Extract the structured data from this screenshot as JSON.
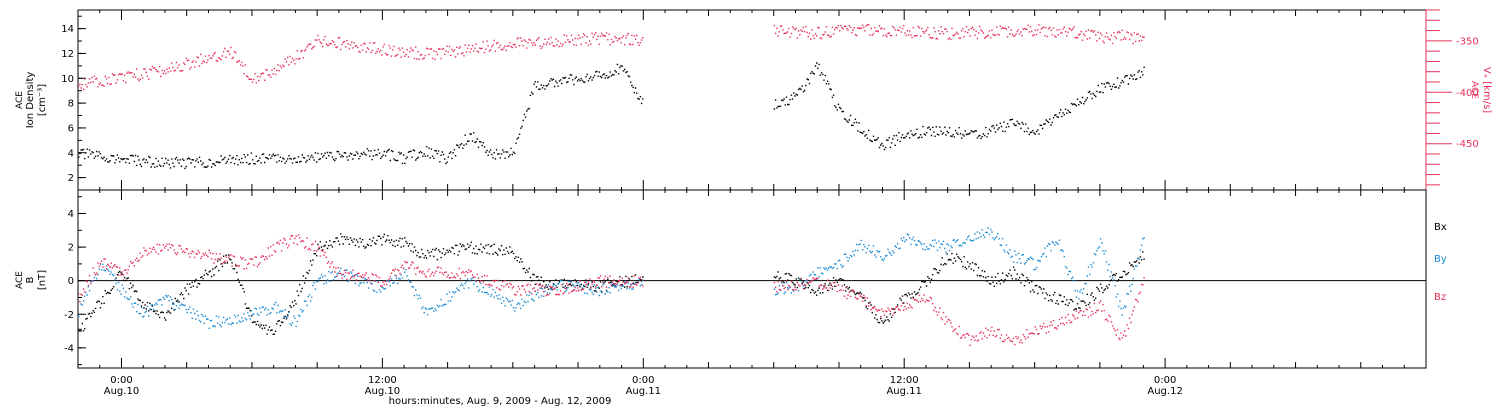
{
  "xaxis": {
    "title": "hours:minutes, Aug.  9, 2009 - Aug. 12, 2009",
    "range_hours": [
      -2,
      60
    ],
    "ticks": [
      {
        "h": 0,
        "time": "0:00",
        "date": "Aug.10"
      },
      {
        "h": 12,
        "time": "12:00",
        "date": "Aug.10"
      },
      {
        "h": 24,
        "time": "0:00",
        "date": "Aug.11"
      },
      {
        "h": 36,
        "time": "12:00",
        "date": "Aug.11"
      },
      {
        "h": 48,
        "time": "0:00",
        "date": "Aug.12"
      }
    ]
  },
  "colors": {
    "black": "#000000",
    "red": "#e8305a",
    "blue": "#1a8ad4"
  },
  "chart_data": [
    {
      "type": "scatter",
      "panel": "top",
      "ylabel": [
        "ACE",
        "Ion Density",
        "[cm⁻³]"
      ],
      "ylim": [
        1,
        15.5
      ],
      "yticks": [
        2,
        4,
        6,
        8,
        10,
        12,
        14
      ],
      "y2label": [
        "ACE",
        "Vₓ [km/s]"
      ],
      "y2lim": [
        -495,
        -320
      ],
      "y2ticks": [
        -350,
        -400,
        -450
      ],
      "series": [
        {
          "color": "black",
          "axis": "left",
          "x": [
            -2,
            0,
            2,
            4,
            6,
            8,
            10,
            12,
            13,
            14,
            15,
            16,
            17,
            18,
            19,
            20,
            21,
            22,
            23,
            24,
            30,
            31,
            32,
            33,
            34,
            35,
            36,
            37,
            38,
            39,
            40,
            41,
            42,
            43,
            44,
            45,
            46,
            47
          ],
          "y": [
            4.0,
            3.5,
            3.2,
            3.3,
            3.6,
            3.6,
            3.8,
            4.0,
            3.6,
            4.2,
            3.5,
            5.5,
            4.0,
            4.0,
            9.5,
            9.8,
            10.0,
            10.2,
            11.0,
            8.0,
            8.0,
            8.5,
            11.0,
            7.5,
            6.0,
            4.6,
            5.5,
            5.8,
            5.8,
            5.5,
            5.8,
            6.5,
            5.6,
            7.0,
            8.0,
            9.2,
            9.8,
            10.5
          ]
        },
        {
          "color": "red",
          "axis": "right",
          "x": [
            -2,
            0,
            2,
            4,
            5,
            6,
            7,
            8,
            9,
            10,
            12,
            14,
            15,
            16,
            18,
            20,
            22,
            24,
            30,
            32,
            34,
            36,
            38,
            40,
            42,
            43,
            44,
            45,
            46,
            47
          ],
          "y": [
            -392,
            -385,
            -378,
            -365,
            -360,
            -385,
            -380,
            -365,
            -350,
            -352,
            -358,
            -362,
            -360,
            -358,
            -352,
            -350,
            -347,
            -348,
            -340,
            -342,
            -339,
            -340,
            -342,
            -341,
            -339,
            -340,
            -342,
            -347,
            -345,
            -347
          ]
        }
      ]
    },
    {
      "type": "scatter",
      "panel": "bottom",
      "ylabel": [
        "ACE",
        "B",
        "[nT]"
      ],
      "ylim": [
        -5.2,
        5.4
      ],
      "yticks": [
        -4,
        -2,
        0,
        2,
        4
      ],
      "legend": [
        "Bx",
        "By",
        "Bz"
      ],
      "series": [
        {
          "name": "Bx",
          "color": "black",
          "x": [
            -2,
            0,
            1,
            2,
            3,
            4,
            5,
            6,
            7,
            8,
            9,
            10,
            11,
            12,
            13,
            14,
            16,
            18,
            19,
            20,
            22,
            24,
            30,
            31,
            32,
            33,
            34,
            35,
            36,
            37,
            38,
            39,
            40,
            41,
            42,
            43,
            44,
            45,
            46,
            47
          ],
          "y": [
            -3.0,
            0.5,
            -1.5,
            -2.0,
            -0.5,
            0.5,
            1.5,
            -2.5,
            -3.0,
            -1.0,
            2.0,
            2.5,
            2.2,
            2.5,
            2.3,
            1.5,
            2.0,
            1.8,
            0.0,
            -0.2,
            -0.3,
            0.2,
            0.5,
            0.0,
            -0.5,
            0.0,
            -1.0,
            -2.5,
            -1.0,
            0.0,
            1.5,
            1.0,
            0.0,
            0.5,
            -0.5,
            -1.0,
            -1.5,
            -0.5,
            0.5,
            1.5
          ]
        },
        {
          "name": "By",
          "color": "blue",
          "x": [
            -2,
            -1,
            0,
            1,
            2,
            4,
            6,
            7,
            8,
            9,
            10,
            12,
            13,
            14,
            16,
            18,
            20,
            22,
            24,
            30,
            31,
            32,
            33,
            34,
            35,
            36,
            37,
            38,
            39,
            40,
            41,
            42,
            43,
            44,
            45,
            46,
            47
          ],
          "y": [
            -2.0,
            1.0,
            -0.5,
            -2.0,
            -1.0,
            -2.5,
            -2.0,
            -1.5,
            -2.5,
            0.0,
            0.5,
            -0.5,
            0.5,
            -2.0,
            0.0,
            -1.5,
            -0.2,
            -0.5,
            0.0,
            -0.5,
            -0.3,
            0.5,
            1.0,
            2.2,
            1.5,
            2.5,
            2.2,
            2.0,
            2.5,
            3.0,
            1.5,
            1.0,
            2.5,
            -1.0,
            2.5,
            -2.0,
            2.5
          ]
        },
        {
          "name": "Bz",
          "color": "red",
          "x": [
            -2,
            -1,
            0,
            1,
            2,
            4,
            6,
            7,
            8,
            9,
            10,
            12,
            13,
            14,
            16,
            18,
            20,
            22,
            24,
            30,
            31,
            32,
            33,
            34,
            35,
            36,
            37,
            38,
            39,
            40,
            41,
            42,
            43,
            44,
            45,
            46,
            47
          ],
          "y": [
            -1.0,
            1.2,
            0.5,
            1.8,
            2.0,
            1.5,
            1.0,
            2.0,
            2.5,
            2.0,
            0.5,
            0.0,
            1.0,
            0.5,
            0.5,
            -0.5,
            -0.5,
            0.0,
            0.0,
            -0.3,
            -0.2,
            0.0,
            -0.5,
            -1.0,
            -2.0,
            -1.5,
            -1.0,
            -2.5,
            -3.5,
            -3.0,
            -3.5,
            -3.0,
            -2.5,
            -2.0,
            -1.5,
            -3.5,
            0.0
          ]
        }
      ]
    }
  ]
}
